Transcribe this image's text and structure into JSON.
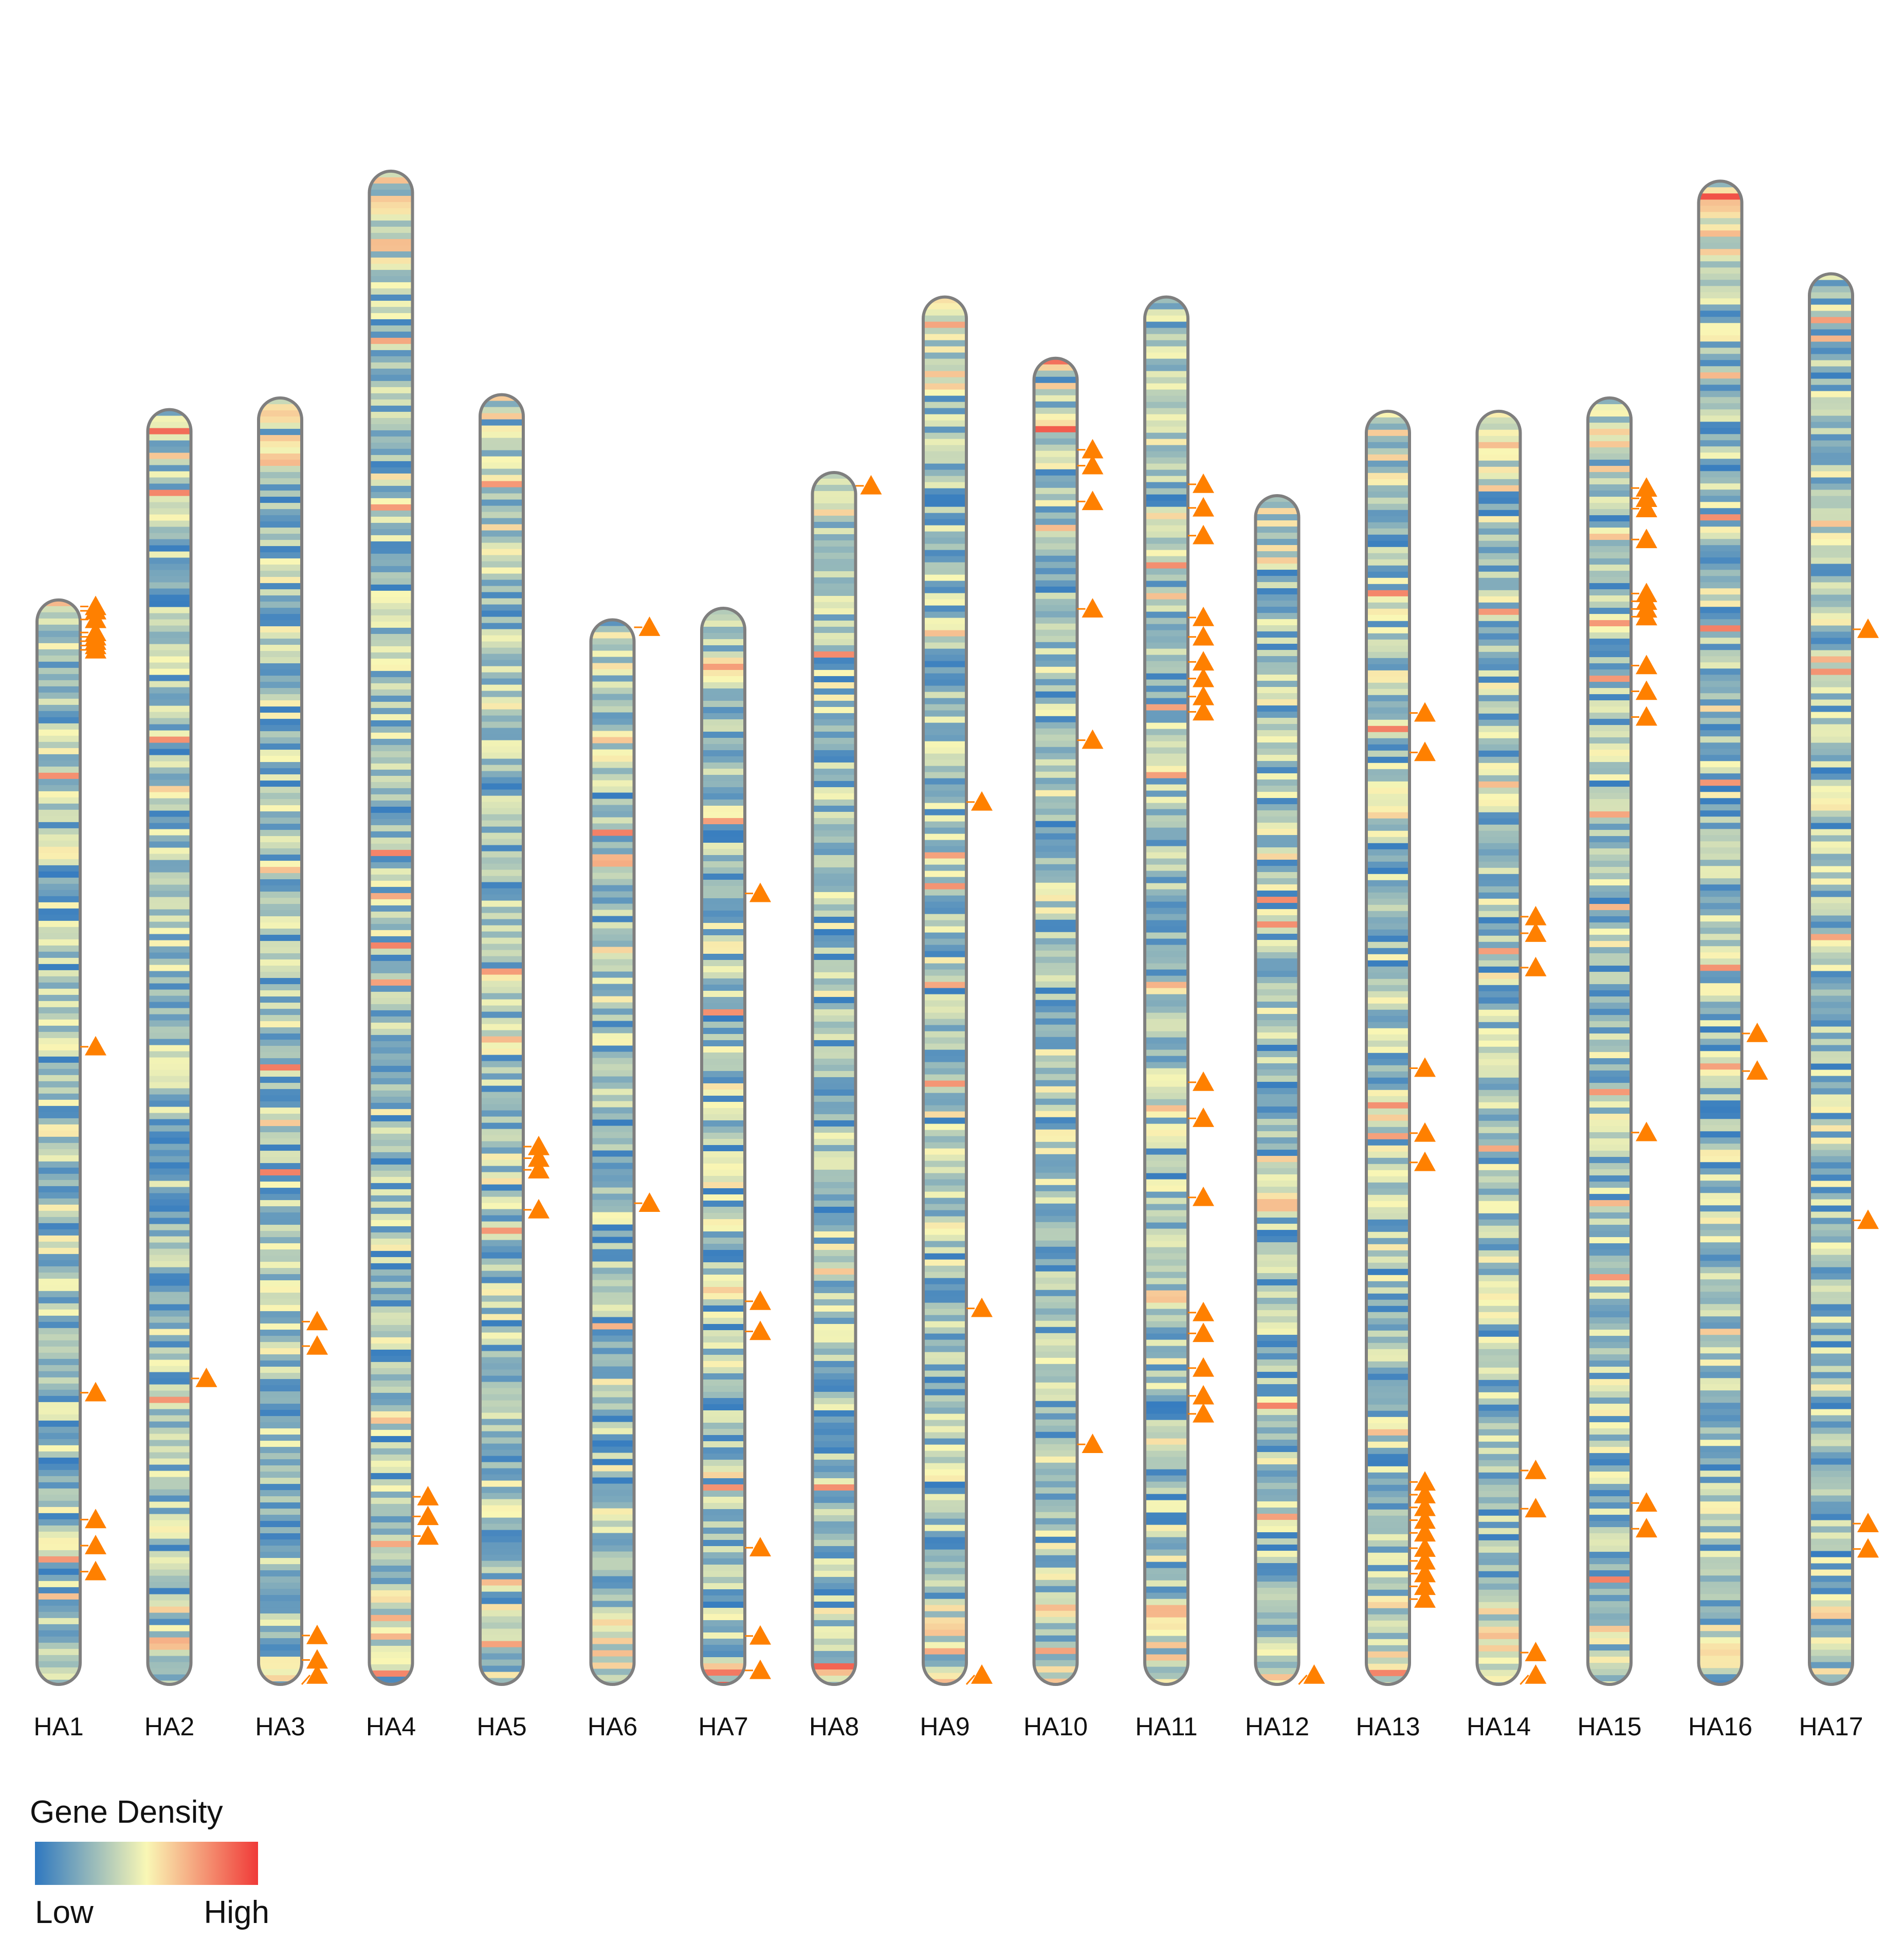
{
  "chart_data": {
    "type": "chromosome-ideogram",
    "title": "",
    "chromosomes": [
      {
        "name": "HA1",
        "length": 0.655,
        "markers": [
          0.006,
          0.01,
          0.018,
          0.03,
          0.034,
          0.038,
          0.042,
          0.046,
          0.412,
          0.731,
          0.848,
          0.872,
          0.896
        ]
      },
      {
        "name": "HA2",
        "length": 0.77,
        "markers": [
          0.76
        ]
      },
      {
        "name": "HA3",
        "length": 0.777,
        "markers": [
          0.718,
          0.737,
          0.962,
          0.981,
          1.0
        ]
      },
      {
        "name": "HA4",
        "length": 0.914,
        "markers": [
          0.876,
          0.889,
          0.902
        ]
      },
      {
        "name": "HA5",
        "length": 0.779,
        "markers": [
          0.583,
          0.592,
          0.601,
          0.632
        ]
      },
      {
        "name": "HA6",
        "length": 0.643,
        "markers": [
          0.007,
          0.548
        ]
      },
      {
        "name": "HA7",
        "length": 0.65,
        "markers": [
          0.265,
          0.644,
          0.672,
          0.873,
          0.955,
          0.987
        ]
      },
      {
        "name": "HA8",
        "length": 0.732,
        "markers": [
          0.011
        ]
      },
      {
        "name": "HA9",
        "length": 0.838,
        "markers": [
          0.364,
          0.729,
          1.0
        ]
      },
      {
        "name": "HA10",
        "length": 0.801,
        "markers": [
          0.069,
          0.081,
          0.108,
          0.189,
          0.288,
          0.819
        ]
      },
      {
        "name": "HA11",
        "length": 0.838,
        "markers": [
          0.135,
          0.152,
          0.172,
          0.231,
          0.245,
          0.263,
          0.275,
          0.288,
          0.299,
          0.566,
          0.592,
          0.649,
          0.732,
          0.747,
          0.772,
          0.792,
          0.805
        ]
      },
      {
        "name": "HA12",
        "length": 0.718,
        "markers": [
          1.0
        ]
      },
      {
        "name": "HA13",
        "length": 0.769,
        "markers": [
          0.237,
          0.268,
          0.516,
          0.567,
          0.59,
          0.841,
          0.851,
          0.861,
          0.871,
          0.881,
          0.893,
          0.903,
          0.913,
          0.923,
          0.933
        ]
      },
      {
        "name": "HA14",
        "length": 0.769,
        "markers": [
          0.397,
          0.41,
          0.437,
          0.832,
          0.862,
          0.975,
          1.0
        ]
      },
      {
        "name": "HA15",
        "length": 0.777,
        "markers": [
          0.07,
          0.078,
          0.086,
          0.11,
          0.152,
          0.158,
          0.164,
          0.17,
          0.208,
          0.228,
          0.248,
          0.571,
          0.859,
          0.879
        ]
      },
      {
        "name": "HA16",
        "length": 0.908,
        "markers": [
          0.567,
          0.592
        ]
      },
      {
        "name": "HA17",
        "length": 0.852,
        "markers": [
          0.252,
          0.671,
          0.886,
          0.904
        ]
      }
    ],
    "xlabel": "",
    "ylabel": "",
    "marker_shape": "triangle",
    "marker_color": "#ff8000",
    "color_scale": {
      "low_color": "#2f78c0",
      "mid_color": "#f9f7b5",
      "high_color": "#f03a38"
    },
    "legend": {
      "title": "Gene Density",
      "low_label": "Low",
      "high_label": "High",
      "placement": "bottom-left"
    }
  },
  "colors": {
    "chrom_outline": "#7f7f7f",
    "marker_line": "#ff8000"
  }
}
